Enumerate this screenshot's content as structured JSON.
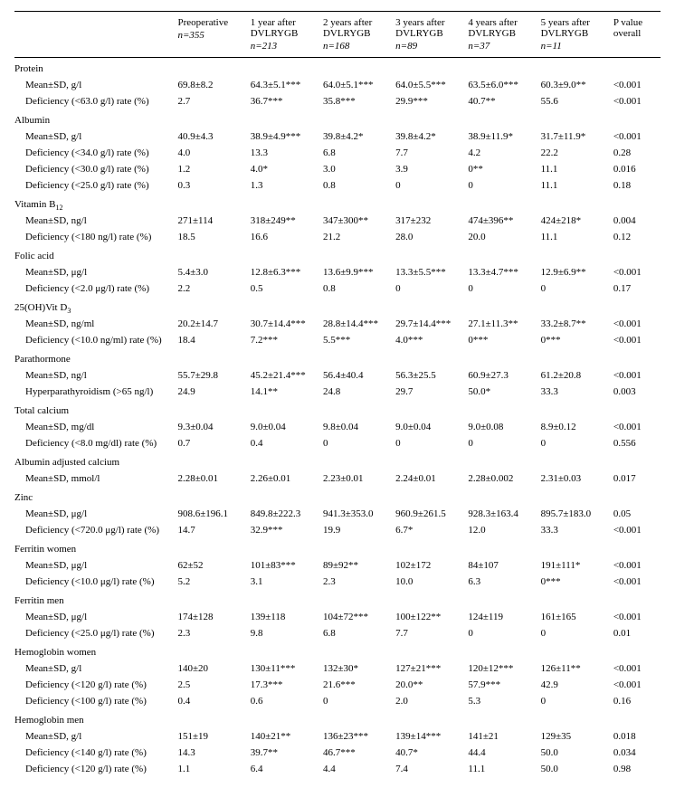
{
  "columns": [
    {
      "line1": "Preoperative",
      "line2": "",
      "n": "n=355"
    },
    {
      "line1": "1 year after",
      "line2": "DVLRYGB",
      "n": "n=213"
    },
    {
      "line1": "2 years after",
      "line2": "DVLRYGB",
      "n": "n=168"
    },
    {
      "line1": "3 years after",
      "line2": "DVLRYGB",
      "n": "n=89"
    },
    {
      "line1": "4 years after",
      "line2": "DVLRYGB",
      "n": "n=37"
    },
    {
      "line1": "5 years after",
      "line2": "DVLRYGB",
      "n": "n=11"
    }
  ],
  "pvalue_header": {
    "line1": "P value",
    "line2": "overall"
  },
  "sections": [
    {
      "title": "Protein",
      "rows": [
        {
          "label": "Mean±SD, g/l",
          "vals": [
            "69.8±8.2",
            "64.3±5.1***",
            "64.0±5.1***",
            "64.0±5.5***",
            "63.5±6.0***",
            "60.3±9.0**"
          ],
          "p": "<0.001"
        },
        {
          "label": "Deficiency (<63.0 g/l) rate (%)",
          "vals": [
            "2.7",
            "36.7***",
            "35.8***",
            "29.9***",
            "40.7**",
            "55.6"
          ],
          "p": "<0.001"
        }
      ]
    },
    {
      "title": "Albumin",
      "rows": [
        {
          "label": "Mean±SD, g/l",
          "vals": [
            "40.9±4.3",
            "38.9±4.9***",
            "39.8±4.2*",
            "39.8±4.2*",
            "38.9±11.9*",
            "31.7±11.9*"
          ],
          "p": "<0.001"
        },
        {
          "label": "Deficiency (<34.0 g/l) rate (%)",
          "vals": [
            "4.0",
            "13.3",
            "6.8",
            "7.7",
            "4.2",
            "22.2"
          ],
          "p": "0.28"
        },
        {
          "label": "Deficiency (<30.0 g/l) rate (%)",
          "vals": [
            "1.2",
            "4.0*",
            "3.0",
            "3.9",
            "0**",
            "11.1"
          ],
          "p": "0.016"
        },
        {
          "label": "Deficiency (<25.0 g/l) rate (%)",
          "vals": [
            "0.3",
            "1.3",
            "0.8",
            "0",
            "0",
            "11.1"
          ],
          "p": "0.18"
        }
      ]
    },
    {
      "title": "Vitamin B₁₂",
      "rows": [
        {
          "label": "Mean±SD, ng/l",
          "vals": [
            "271±114",
            "318±249**",
            "347±300**",
            "317±232",
            "474±396**",
            "424±218*"
          ],
          "p": "0.004"
        },
        {
          "label": "Deficiency (<180 ng/l) rate (%)",
          "vals": [
            "18.5",
            "16.6",
            "21.2",
            "28.0",
            "20.0",
            "11.1"
          ],
          "p": "0.12"
        }
      ]
    },
    {
      "title": "Folic acid",
      "rows": [
        {
          "label": "Mean±SD, μg/l",
          "vals": [
            "5.4±3.0",
            "12.8±6.3***",
            "13.6±9.9***",
            "13.3±5.5***",
            "13.3±4.7***",
            "12.9±6.9**"
          ],
          "p": "<0.001"
        },
        {
          "label": "Deficiency (<2.0 μg/l) rate (%)",
          "vals": [
            "2.2",
            "0.5",
            "0.8",
            "0",
            "0",
            "0"
          ],
          "p": "0.17"
        }
      ]
    },
    {
      "title": "25(OH)Vit D₃",
      "rows": [
        {
          "label": "Mean±SD, ng/ml",
          "vals": [
            "20.2±14.7",
            "30.7±14.4***",
            "28.8±14.4***",
            "29.7±14.4***",
            "27.1±11.3**",
            "33.2±8.7**"
          ],
          "p": "<0.001"
        },
        {
          "label": "Deficiency (<10.0 ng/ml) rate (%)",
          "vals": [
            "18.4",
            "7.2***",
            "5.5***",
            "4.0***",
            "0***",
            "0***"
          ],
          "p": "<0.001"
        }
      ]
    },
    {
      "title": "Parathormone",
      "rows": [
        {
          "label": "Mean±SD, ng/l",
          "vals": [
            "55.7±29.8",
            "45.2±21.4***",
            "56.4±40.4",
            "56.3±25.5",
            "60.9±27.3",
            "61.2±20.8"
          ],
          "p": "<0.001"
        },
        {
          "label": "Hyperparathyroidism (>65 ng/l)",
          "vals": [
            "24.9",
            "14.1**",
            "24.8",
            "29.7",
            "50.0*",
            "33.3"
          ],
          "p": "0.003"
        }
      ]
    },
    {
      "title": "Total calcium",
      "rows": [
        {
          "label": "Mean±SD, mg/dl",
          "vals": [
            "9.3±0.04",
            "9.0±0.04",
            "9.8±0.04",
            "9.0±0.04",
            "9.0±0.08",
            "8.9±0.12"
          ],
          "p": "<0.001"
        },
        {
          "label": "Deficiency (<8.0 mg/dl) rate (%)",
          "vals": [
            "0.7",
            "0.4",
            "0",
            "0",
            "0",
            "0"
          ],
          "p": "0.556"
        }
      ]
    },
    {
      "title": "Albumin adjusted calcium",
      "rows": [
        {
          "label": "Mean±SD, mmol/l",
          "vals": [
            "2.28±0.01",
            "2.26±0.01",
            "2.23±0.01",
            "2.24±0.01",
            "2.28±0.002",
            "2.31±0.03"
          ],
          "p": "0.017"
        }
      ]
    },
    {
      "title": "Zinc",
      "rows": [
        {
          "label": "Mean±SD, μg/l",
          "vals": [
            "908.6±196.1",
            "849.8±222.3",
            "941.3±353.0",
            "960.9±261.5",
            "928.3±163.4",
            "895.7±183.0"
          ],
          "p": "0.05"
        },
        {
          "label": "Deficiency (<720.0 μg/l) rate (%)",
          "vals": [
            "14.7",
            "32.9***",
            "19.9",
            "6.7*",
            "12.0",
            "33.3"
          ],
          "p": "<0.001"
        }
      ]
    },
    {
      "title": "Ferritin women",
      "rows": [
        {
          "label": "Mean±SD, μg/l",
          "vals": [
            "62±52",
            "101±83***",
            "89±92**",
            "102±172",
            "84±107",
            "191±111*"
          ],
          "p": "<0.001"
        },
        {
          "label": "Deficiency (<10.0 μg/l) rate (%)",
          "vals": [
            "5.2",
            "3.1",
            "2.3",
            "10.0",
            "6.3",
            "0***"
          ],
          "p": "<0.001"
        }
      ]
    },
    {
      "title": "Ferritin men",
      "rows": [
        {
          "label": "Mean±SD, μg/l",
          "vals": [
            "174±128",
            "139±118",
            "104±72***",
            "100±122**",
            "124±119",
            "161±165"
          ],
          "p": "<0.001"
        },
        {
          "label": "Deficiency (<25.0 μg/l) rate (%)",
          "vals": [
            "2.3",
            "9.8",
            "6.8",
            "7.7",
            "0",
            "0"
          ],
          "p": "0.01"
        }
      ]
    },
    {
      "title": "Hemoglobin women",
      "rows": [
        {
          "label": "Mean±SD, g/l",
          "vals": [
            "140±20",
            "130±11***",
            "132±30*",
            "127±21***",
            "120±12***",
            "126±11**"
          ],
          "p": "<0.001"
        },
        {
          "label": "Deficiency (<120 g/l) rate (%)",
          "vals": [
            "2.5",
            "17.3***",
            "21.6***",
            "20.0**",
            "57.9***",
            "42.9"
          ],
          "p": "<0.001"
        },
        {
          "label": "Deficiency (<100 g/l) rate (%)",
          "vals": [
            "0.4",
            "0.6",
            "0",
            "2.0",
            "5.3",
            "0"
          ],
          "p": "0.16"
        }
      ]
    },
    {
      "title": "Hemoglobin men",
      "rows": [
        {
          "label": "Mean±SD, g/l",
          "vals": [
            "151±19",
            "140±21**",
            "136±23***",
            "139±14***",
            "141±21",
            "129±35"
          ],
          "p": "0.018"
        },
        {
          "label": "Deficiency (<140 g/l) rate (%)",
          "vals": [
            "14.3",
            "39.7**",
            "46.7***",
            "40.7*",
            "44.4",
            "50.0"
          ],
          "p": "0.034"
        },
        {
          "label": "Deficiency (<120 g/l) rate (%)",
          "vals": [
            "1.1",
            "6.4",
            "4.4",
            "7.4",
            "11.1",
            "50.0"
          ],
          "p": "0.98"
        }
      ]
    }
  ]
}
